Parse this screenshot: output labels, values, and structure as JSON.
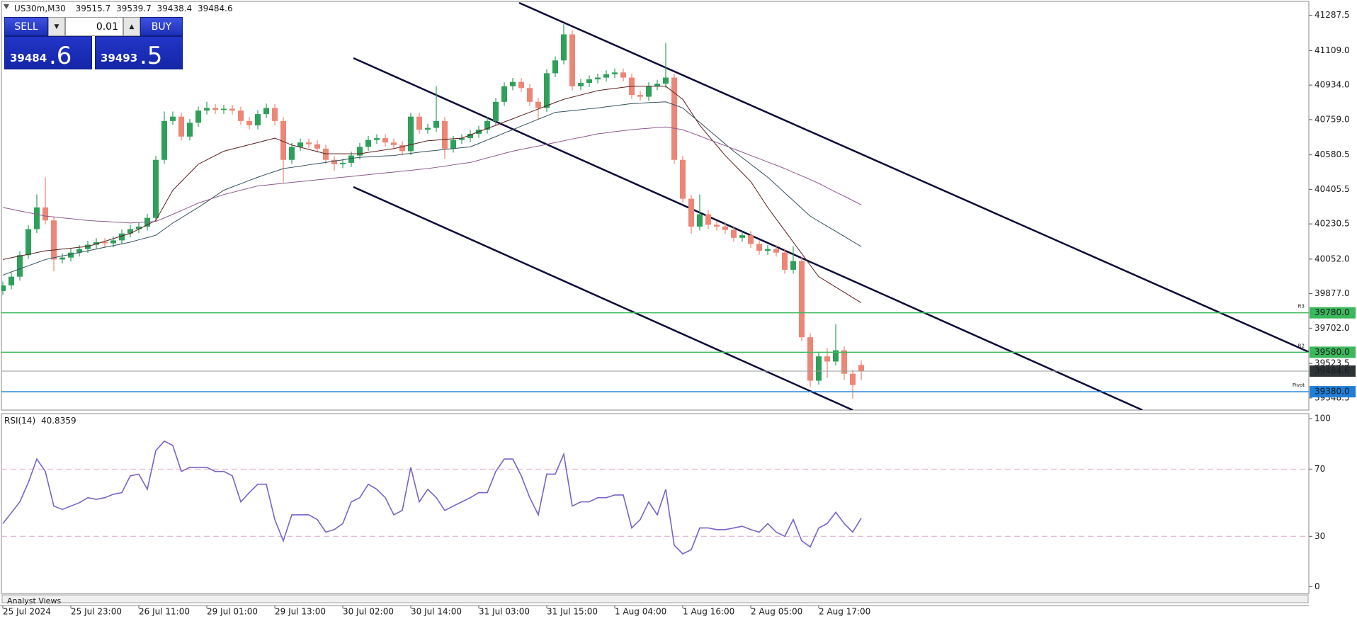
{
  "chart_data": [
    {
      "type": "candlestick",
      "title": "US30m,M30",
      "categories": [
        "25 Jul 2024",
        null,
        null,
        null,
        null,
        null,
        null,
        null,
        "25 Jul 23:00",
        null,
        null,
        null,
        null,
        null,
        null,
        null,
        "26 Jul 11:00",
        null,
        null,
        null,
        null,
        null,
        null,
        null,
        "29 Jul 01:00",
        null,
        null,
        null,
        null,
        null,
        null,
        null,
        "29 Jul 13:00",
        null,
        null,
        null,
        null,
        null,
        null,
        null,
        "30 Jul 02:00",
        null,
        null,
        null,
        null,
        null,
        null,
        null,
        "30 Jul 14:00",
        null,
        null,
        null,
        null,
        null,
        null,
        null,
        "31 Jul 03:00",
        null,
        null,
        null,
        null,
        null,
        null,
        null,
        "31 Jul 15:00",
        null,
        null,
        null,
        null,
        null,
        null,
        null,
        "1 Aug 04:00",
        null,
        null,
        null,
        null,
        null,
        null,
        null,
        "1 Aug 16:00",
        null,
        null,
        null,
        null,
        null,
        null,
        null,
        "2 Aug 05:00",
        null,
        null,
        null,
        null,
        null,
        null,
        null,
        "2 Aug 17:00",
        null,
        null,
        null,
        null,
        null
      ],
      "open": [
        39890,
        39919,
        39963,
        40072,
        40204,
        40314,
        40248,
        40050,
        40060,
        40085,
        40103,
        40125,
        40138,
        40132,
        40147,
        40182,
        40204,
        40217,
        40261,
        40555,
        40752,
        40774,
        40673,
        40743,
        40805,
        40818,
        40808,
        40814,
        40805,
        40752,
        40730,
        40787,
        40818,
        40752,
        40555,
        40621,
        40643,
        40634,
        40612,
        40555,
        40533,
        40540,
        40577,
        40621,
        40656,
        40665,
        40643,
        40630,
        40599,
        40774,
        40708,
        40717,
        40752,
        40612,
        40656,
        40665,
        40687,
        40708,
        40752,
        40849,
        40928,
        40950,
        40919,
        40849,
        40818,
        40994,
        41059,
        41191,
        40928,
        40945,
        40963,
        40972,
        40989,
        40998,
        40972,
        40884,
        40875,
        40928,
        40941,
        40972,
        40555,
        40358,
        40217,
        40279,
        40226,
        40217,
        40200,
        40160,
        40173,
        40129,
        40094,
        40103,
        40085,
        39998,
        40042,
        39656,
        39436,
        39559,
        39533,
        39590,
        39471,
        39515.7
      ],
      "high": [
        39939,
        39983,
        40092,
        40224,
        40380,
        40467,
        40268,
        40080,
        40105,
        40123,
        40145,
        40158,
        40158,
        40167,
        40202,
        40224,
        40237,
        40281,
        40575,
        40800,
        40800,
        40794,
        40763,
        40825,
        40850,
        40838,
        40834,
        40834,
        40825,
        40772,
        40807,
        40840,
        40838,
        40772,
        40641,
        40663,
        40663,
        40654,
        40632,
        40575,
        40560,
        40597,
        40641,
        40676,
        40685,
        40685,
        40663,
        40650,
        40794,
        40794,
        40737,
        40928,
        40772,
        40676,
        40685,
        40707,
        40728,
        40772,
        40869,
        40948,
        40970,
        40970,
        40939,
        40869,
        41014,
        41079,
        41243,
        41211,
        40965,
        40983,
        40992,
        41009,
        41018,
        41018,
        40992,
        40904,
        40948,
        40961,
        41147,
        40992,
        40575,
        40378,
        40380,
        40299,
        40246,
        40237,
        40220,
        40193,
        40193,
        40149,
        40123,
        40123,
        40105,
        40116,
        40062,
        39676,
        39579,
        39600,
        39722,
        39610,
        39491,
        39539.7
      ],
      "low": [
        39870,
        39899,
        39943,
        40052,
        40184,
        40228,
        39990,
        40030,
        40040,
        40065,
        40083,
        40105,
        40112,
        40112,
        40127,
        40162,
        40184,
        40197,
        40241,
        40535,
        40732,
        40653,
        40653,
        40723,
        40785,
        40788,
        40788,
        40785,
        40732,
        40710,
        40710,
        40767,
        40732,
        40440,
        40535,
        40601,
        40614,
        40592,
        40535,
        40500,
        40513,
        40520,
        40557,
        40601,
        40636,
        40623,
        40610,
        40579,
        40579,
        40688,
        40688,
        40697,
        40560,
        40592,
        40636,
        40645,
        40667,
        40688,
        40732,
        40829,
        40908,
        40899,
        40829,
        40760,
        40798,
        40974,
        41039,
        40908,
        40908,
        40925,
        40943,
        40952,
        40969,
        40952,
        40864,
        40855,
        40855,
        40908,
        40921,
        40535,
        40338,
        40180,
        40197,
        40206,
        40197,
        40180,
        40140,
        40140,
        40109,
        40074,
        40074,
        40065,
        39978,
        39978,
        39636,
        39405,
        39416,
        39450,
        39513,
        39440,
        39345,
        39438.4
      ],
      "close": [
        39919,
        39963,
        40072,
        40204,
        40314,
        40248,
        40050,
        40060,
        40085,
        40103,
        40125,
        40138,
        40132,
        40147,
        40182,
        40204,
        40217,
        40261,
        40555,
        40752,
        40774,
        40673,
        40743,
        40805,
        40818,
        40808,
        40814,
        40805,
        40752,
        40730,
        40787,
        40818,
        40752,
        40555,
        40621,
        40643,
        40634,
        40612,
        40555,
        40533,
        40540,
        40577,
        40621,
        40656,
        40665,
        40643,
        40630,
        40599,
        40774,
        40708,
        40717,
        40752,
        40612,
        40656,
        40665,
        40687,
        40708,
        40752,
        40849,
        40928,
        40950,
        40919,
        40849,
        40818,
        40994,
        41059,
        41191,
        40928,
        40945,
        40963,
        40972,
        40989,
        40998,
        40972,
        40884,
        40875,
        40928,
        40941,
        40972,
        40555,
        40358,
        40217,
        40279,
        40226,
        40217,
        40200,
        40160,
        40173,
        40129,
        40094,
        40103,
        40085,
        39998,
        40042,
        39656,
        39436,
        39559,
        39533,
        39590,
        39471,
        39414,
        39484.6
      ],
      "up_color": "#2ea05a",
      "down_color": "#ec8676",
      "overlays": [
        {
          "color": "#5a1c1c",
          "values": [
            40050,
            40059,
            40068,
            40076,
            40085,
            40094,
            40098,
            40103,
            40107,
            40112,
            40116,
            40129,
            40142,
            40156,
            40169,
            40182,
            40204,
            40226,
            40248,
            40325,
            40401,
            40445,
            40489,
            40533,
            40555,
            40577,
            40599,
            40610,
            40621,
            40632,
            40643,
            40654,
            40665,
            40648,
            40630,
            40619,
            40608,
            40597,
            40586,
            40586,
            40586,
            40586,
            40586,
            40593,
            40599,
            40606,
            40612,
            40622,
            40632,
            40642,
            40652,
            40655,
            40659,
            40662,
            40665,
            40681,
            40698,
            40714,
            40730,
            40747,
            40763,
            40780,
            40796,
            40813,
            40829,
            40846,
            40862,
            40873,
            40884,
            40895,
            40906,
            40912,
            40917,
            40923,
            40928,
            40928,
            40928,
            40928,
            40928,
            40895,
            40862,
            40796,
            40730,
            40679,
            40628,
            40577,
            40533,
            40489,
            40445,
            40380,
            40314,
            40255,
            40197,
            40138,
            40080,
            40021,
            39963,
            39937,
            39910,
            39884,
            39857,
            39831
          ]
        },
        {
          "color": "#34505e",
          "values": [
            39971,
            39987,
            40003,
            40018,
            40034,
            40050,
            40059,
            40068,
            40076,
            40085,
            40094,
            40103,
            40112,
            40120,
            40129,
            40138,
            40150,
            40161,
            40173,
            40204,
            40235,
            40261,
            40288,
            40314,
            40343,
            40372,
            40401,
            40418,
            40434,
            40451,
            40467,
            40482,
            40496,
            40511,
            40517,
            40523,
            40530,
            40536,
            40542,
            40549,
            40555,
            40562,
            40568,
            40570,
            40573,
            40575,
            40577,
            40583,
            40588,
            40594,
            40599,
            40603,
            40608,
            40612,
            40617,
            40621,
            40638,
            40656,
            40673,
            40691,
            40708,
            40726,
            40743,
            40761,
            40778,
            40796,
            40800,
            40805,
            40809,
            40814,
            40818,
            40824,
            40829,
            40835,
            40840,
            40842,
            40845,
            40847,
            40849,
            40834,
            40818,
            40781,
            40745,
            40708,
            40672,
            40635,
            40599,
            40566,
            40533,
            40500,
            40467,
            40428,
            40388,
            40349,
            40309,
            40270,
            40244,
            40218,
            40193,
            40167,
            40141,
            40116
          ]
        },
        {
          "color": "#8c5a8c",
          "values": [
            40314,
            40305,
            40296,
            40288,
            40279,
            40270,
            40266,
            40261,
            40257,
            40252,
            40248,
            40245,
            40243,
            40240,
            40238,
            40235,
            40238,
            40240,
            40243,
            40261,
            40279,
            40298,
            40317,
            40336,
            40350,
            40365,
            40379,
            40390,
            40401,
            40412,
            40423,
            40427,
            40432,
            40436,
            40441,
            40445,
            40449,
            40454,
            40458,
            40463,
            40467,
            40471,
            40476,
            40480,
            40485,
            40489,
            40493,
            40498,
            40502,
            40507,
            40511,
            40517,
            40523,
            40530,
            40536,
            40542,
            40553,
            40565,
            40576,
            40588,
            40599,
            40608,
            40617,
            40625,
            40634,
            40643,
            40652,
            40661,
            40669,
            40678,
            40687,
            40692,
            40698,
            40703,
            40708,
            40712,
            40715,
            40719,
            40722,
            40715,
            40708,
            40692,
            40676,
            40659,
            40643,
            40627,
            40610,
            40594,
            40577,
            40561,
            40544,
            40528,
            40511,
            40492,
            40474,
            40455,
            40436,
            40414,
            40392,
            40371,
            40349,
            40327
          ]
        }
      ],
      "levels": [
        {
          "name": "R3",
          "value": 39780,
          "label": "39780.0",
          "color": "#3cb85c"
        },
        {
          "name": "R2",
          "value": 39580,
          "label": "39580.0",
          "color": "#3cb85c"
        },
        {
          "name": "Pivot",
          "value": 39380,
          "label": "39380.0",
          "color": "#1f7fd8"
        }
      ],
      "last_price_color": "#9a9a9a",
      "ylim": [
        39287,
        41358
      ],
      "yticks": [
        41287.5,
        {
          "value": 41109,
          "label": "41109.0"
        },
        {
          "value": 40934,
          "label": "40934.0"
        },
        {
          "value": 40759,
          "label": "40759.0"
        },
        40580.5,
        40405.5,
        40230.5,
        {
          "value": 40052,
          "label": "40052.0"
        },
        {
          "value": 39877,
          "label": "39877.0"
        },
        {
          "value": 39702,
          "label": "39702.0"
        },
        39523.5,
        39348.5
      ]
    },
    {
      "type": "line",
      "title": "RSI(14)",
      "color": "#7a62c8",
      "values": [
        37.6,
        44,
        50.5,
        62,
        76,
        68.6,
        48,
        46,
        48,
        50,
        53,
        52,
        53,
        55,
        56,
        66,
        67,
        58,
        81,
        86.6,
        84,
        68.6,
        71,
        71,
        71,
        68.6,
        68.6,
        66,
        50.5,
        56,
        61,
        61,
        40,
        27.3,
        42.8,
        42.8,
        42.8,
        40,
        32.5,
        34,
        37.6,
        50.5,
        53,
        61,
        58,
        53,
        42.8,
        45.4,
        71,
        50.5,
        58,
        53,
        45.4,
        48,
        50.5,
        53,
        56,
        56,
        68.6,
        76,
        76,
        66,
        53,
        42.8,
        67,
        67,
        78.9,
        48,
        50.5,
        50.5,
        53,
        53,
        54.6,
        54.6,
        35,
        40,
        50.5,
        42.8,
        58,
        24.7,
        19.6,
        22,
        35,
        35,
        34,
        34,
        35,
        36,
        34,
        32.5,
        37.6,
        32.5,
        30,
        40,
        27.3,
        23.7,
        35,
        37.6,
        44.3,
        37.6,
        32.5,
        40.8359
      ],
      "levels": [
        30,
        70
      ],
      "level_color": "#d9a9c9",
      "ylim": [
        -4,
        103
      ],
      "yticks": [
        100,
        70,
        30,
        0
      ]
    }
  ],
  "trade_panel": {
    "sell": "SELL",
    "buy": "BUY",
    "lot": "0.01",
    "bid": [
      "39484",
      ".6"
    ],
    "ask": [
      "39493",
      ".5"
    ]
  },
  "footer_tab": "Analyst Views"
}
